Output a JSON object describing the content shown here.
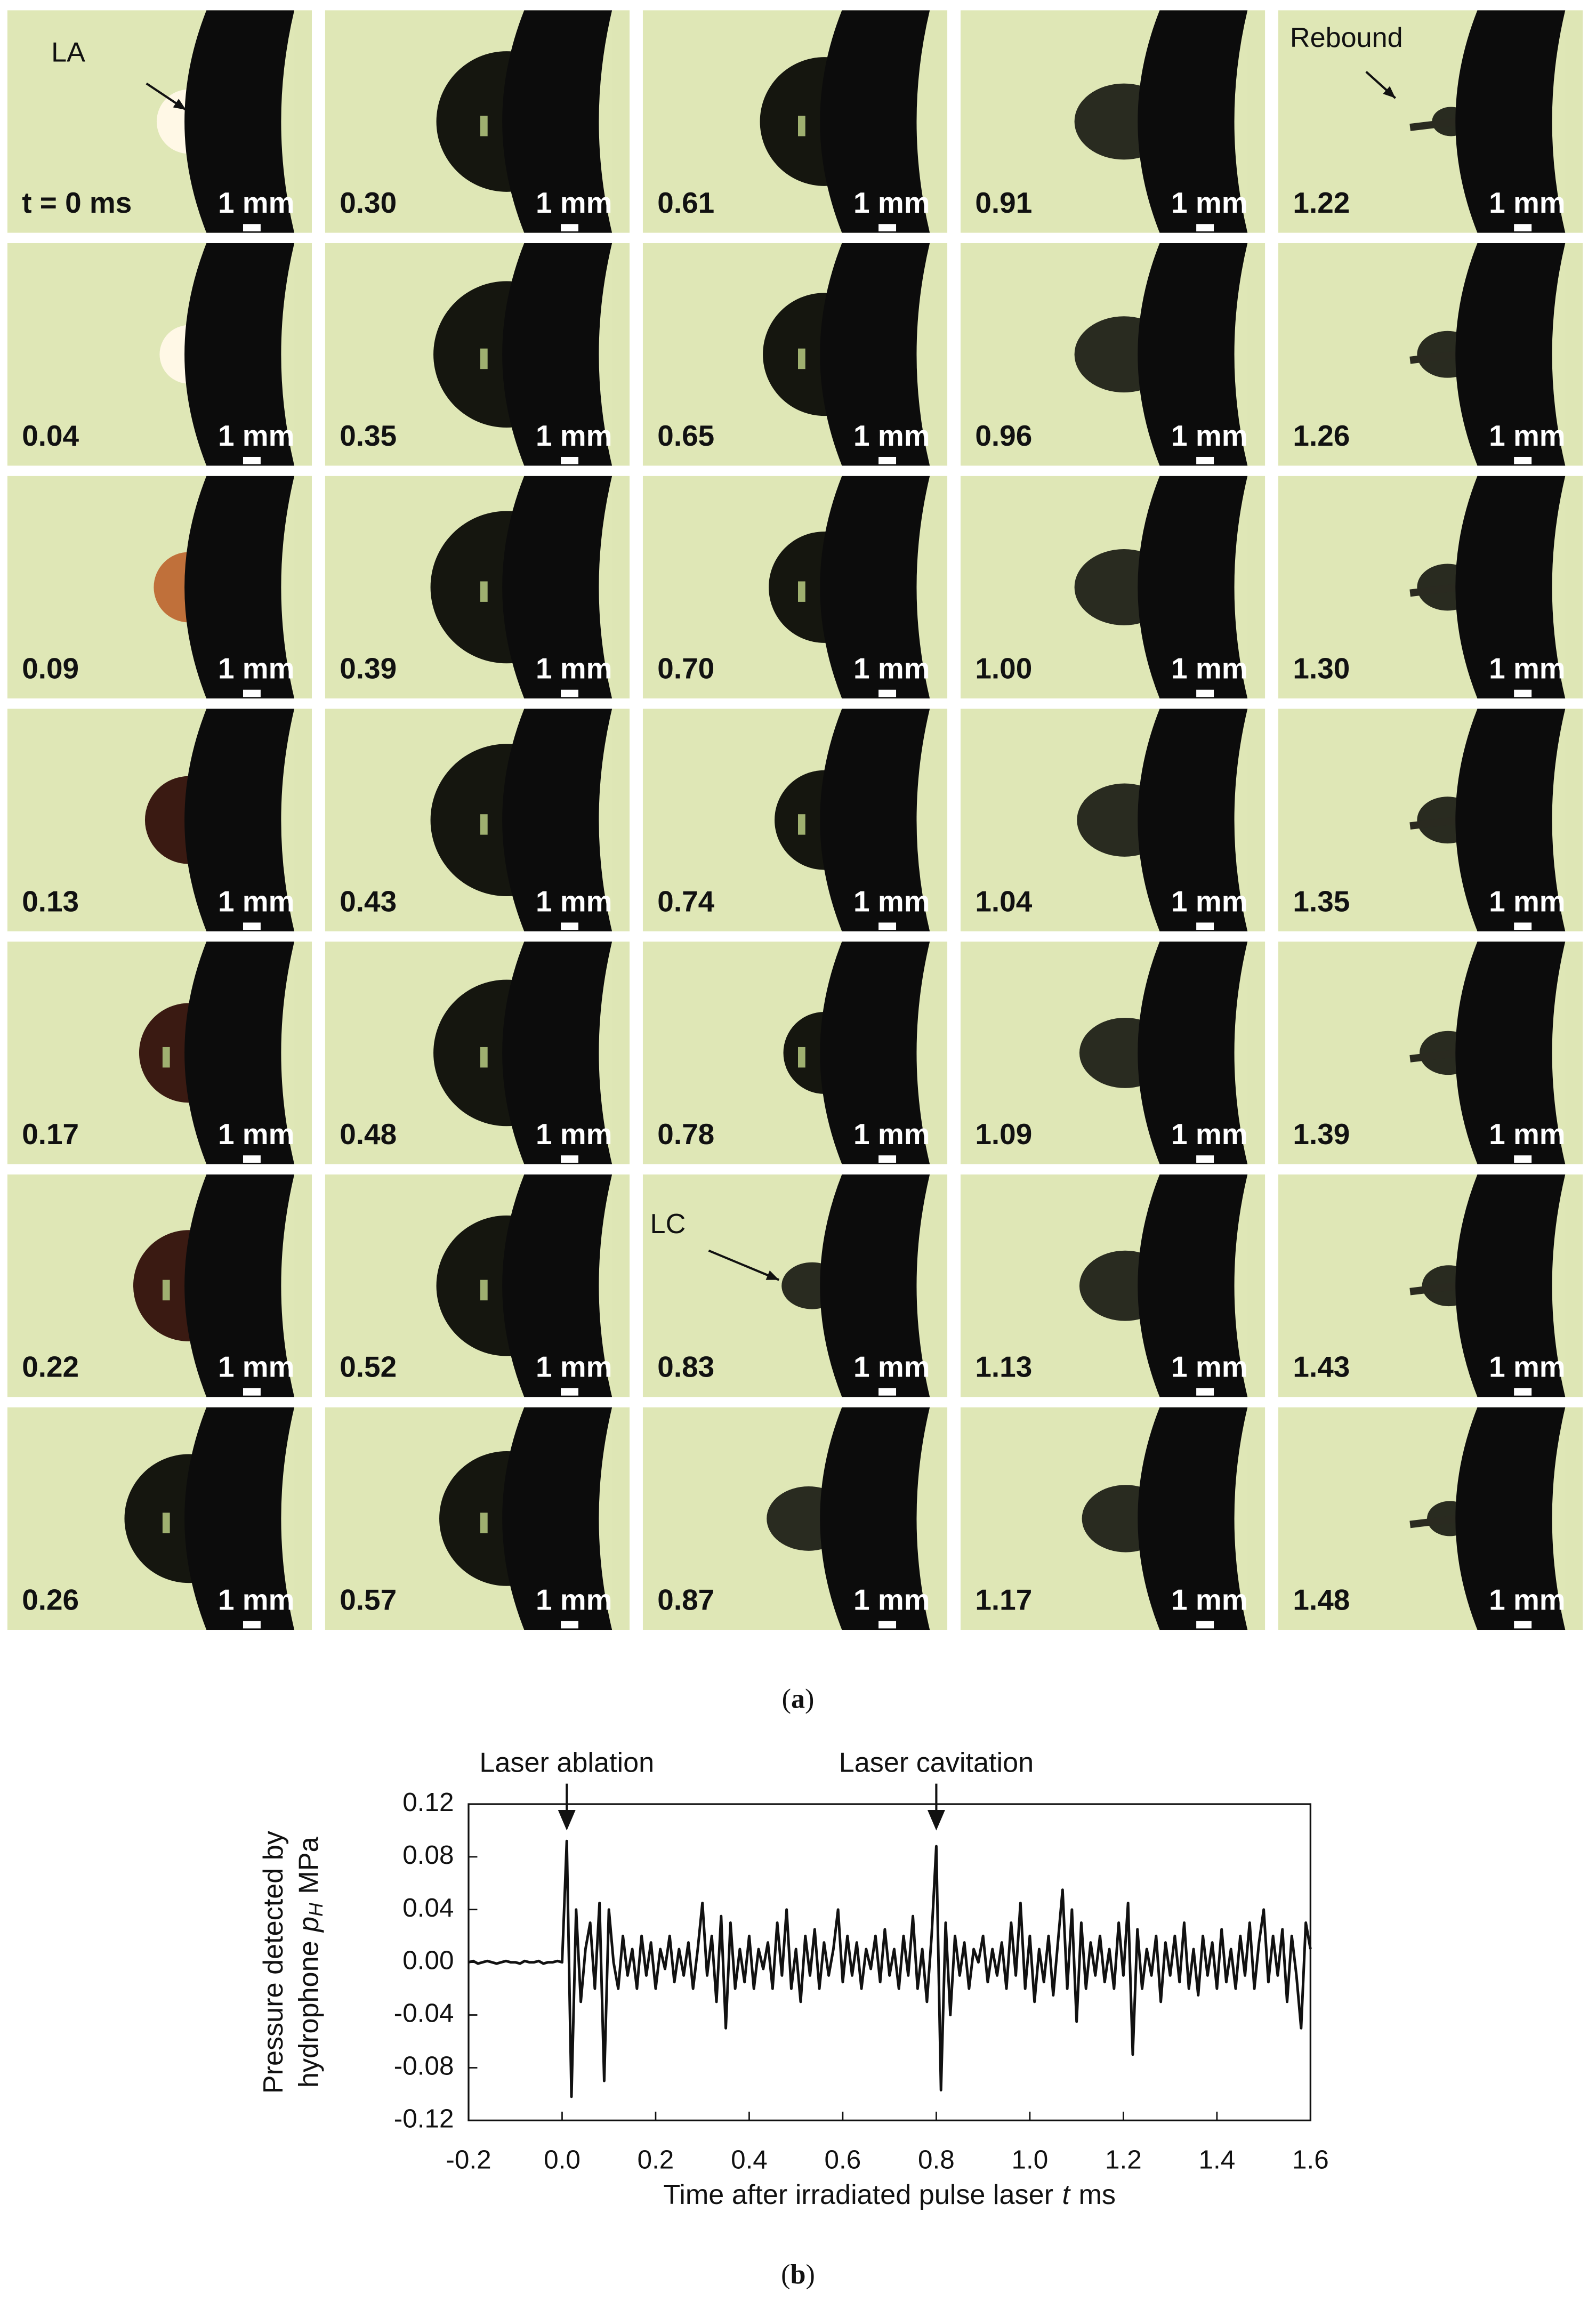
{
  "figure": {
    "frame_labels": [
      "t = 0 ms",
      "0.04",
      "0.09",
      "0.13",
      "0.17",
      "0.22",
      "0.26",
      "0.30",
      "0.35",
      "0.39",
      "0.43",
      "0.48",
      "0.52",
      "0.57",
      "0.61",
      "0.65",
      "0.70",
      "0.74",
      "0.78",
      "0.83",
      "0.87",
      "0.91",
      "0.96",
      "1.00",
      "1.04",
      "1.09",
      "1.13",
      "1.17",
      "1.22",
      "1.26",
      "1.30",
      "1.35",
      "1.39",
      "1.43",
      "1.48"
    ],
    "scale_label": "1 mm",
    "annotations": [
      "LA",
      "Rebound",
      "LC"
    ],
    "caption_a": [
      "(",
      "a",
      ")"
    ],
    "caption_b": [
      "(",
      "b",
      ")"
    ]
  },
  "chart_data": {
    "type": "line",
    "xlabel": [
      "Time after irradiated pulse laser",
      "t",
      "ms"
    ],
    "ylabel": [
      "Pressure detected by",
      "hydrophone",
      "p",
      "H",
      "MPa"
    ],
    "annotations": [
      {
        "text": "Laser ablation",
        "x": 0.01
      },
      {
        "text": "Laser cavitation",
        "x": 0.8
      }
    ],
    "xlim": [
      -0.2,
      1.6
    ],
    "xticks": [
      -0.2,
      {
        "value": 0,
        "label": "0.0"
      },
      0.2,
      0.4,
      0.6,
      0.8,
      {
        "value": 1,
        "label": "1.0"
      },
      1.2,
      1.4,
      1.6
    ],
    "ylim": [
      -0.12,
      0.12
    ],
    "yticks": [
      0.12,
      0.08,
      0.04,
      {
        "value": 0,
        "label": "0.00"
      },
      -0.04,
      -0.08,
      -0.12
    ],
    "grid": false,
    "x": [
      -0.2,
      -0.19,
      -0.18,
      -0.17,
      -0.16,
      -0.15,
      -0.14,
      -0.13,
      -0.12,
      -0.11,
      -0.1,
      -0.09,
      -0.08,
      -0.07,
      -0.06,
      -0.05,
      -0.04,
      -0.03,
      -0.02,
      -0.01,
      0,
      0.01,
      0.02,
      0.03,
      0.04,
      0.05,
      0.06,
      0.07,
      0.08,
      0.09,
      0.1,
      0.11,
      0.12,
      0.13,
      0.14,
      0.15,
      0.16,
      0.17,
      0.18,
      0.19,
      0.2,
      0.21,
      0.22,
      0.23,
      0.24,
      0.25,
      0.26,
      0.27,
      0.28,
      0.29,
      0.3,
      0.31,
      0.32,
      0.33,
      0.34,
      0.35,
      0.36,
      0.37,
      0.38,
      0.39,
      0.4,
      0.41,
      0.42,
      0.43,
      0.44,
      0.45,
      0.46,
      0.47,
      0.48,
      0.49,
      0.5,
      0.51,
      0.52,
      0.53,
      0.54,
      0.55,
      0.56,
      0.57,
      0.58,
      0.59,
      0.6,
      0.61,
      0.62,
      0.63,
      0.64,
      0.65,
      0.66,
      0.67,
      0.68,
      0.69,
      0.7,
      0.71,
      0.72,
      0.73,
      0.74,
      0.75,
      0.76,
      0.77,
      0.78,
      0.79,
      0.8,
      0.81,
      0.82,
      0.83,
      0.84,
      0.85,
      0.86,
      0.87,
      0.88,
      0.89,
      0.9,
      0.91,
      0.92,
      0.93,
      0.94,
      0.95,
      0.96,
      0.97,
      0.98,
      0.99,
      1,
      1.01,
      1.02,
      1.03,
      1.04,
      1.05,
      1.06,
      1.07,
      1.08,
      1.09,
      1.1,
      1.11,
      1.12,
      1.13,
      1.14,
      1.15,
      1.16,
      1.17,
      1.18,
      1.19,
      1.2,
      1.21,
      1.22,
      1.23,
      1.24,
      1.25,
      1.26,
      1.27,
      1.28,
      1.29,
      1.3,
      1.31,
      1.32,
      1.33,
      1.34,
      1.35,
      1.36,
      1.37,
      1.38,
      1.39,
      1.4,
      1.41,
      1.42,
      1.43,
      1.44,
      1.45,
      1.46,
      1.47,
      1.48,
      1.49,
      1.5,
      1.51,
      1.52,
      1.53,
      1.54,
      1.55,
      1.56,
      1.57,
      1.58,
      1.59,
      1.6
    ],
    "series": [
      {
        "name": "p_H",
        "color": "#111111",
        "values": [
          0,
          0.001,
          -0.001,
          0,
          0.001,
          0,
          -0.001,
          0,
          0.001,
          0,
          0,
          -0.001,
          0.001,
          0,
          0,
          0.001,
          -0.001,
          0,
          0,
          0.001,
          0,
          0.092,
          -0.102,
          0.04,
          -0.03,
          0.01,
          0.03,
          -0.02,
          0.045,
          -0.09,
          0.04,
          0,
          -0.02,
          0.02,
          -0.01,
          0.01,
          -0.02,
          0.02,
          -0.01,
          0.015,
          -0.02,
          0.01,
          -0.005,
          0.02,
          -0.015,
          0.01,
          -0.01,
          0.015,
          -0.02,
          0.01,
          0.045,
          -0.01,
          0.02,
          -0.03,
          0.035,
          -0.05,
          0.03,
          -0.02,
          0.01,
          -0.015,
          0.02,
          -0.02,
          0.01,
          -0.005,
          0.015,
          -0.02,
          0.03,
          -0.01,
          0.04,
          -0.02,
          0.01,
          -0.03,
          0.02,
          -0.01,
          0.025,
          -0.02,
          0.015,
          -0.01,
          0.01,
          0.04,
          -0.015,
          0.02,
          -0.01,
          0.015,
          -0.02,
          0.01,
          -0.005,
          0.02,
          -0.015,
          0.025,
          -0.01,
          0.01,
          -0.02,
          0.02,
          -0.01,
          0.035,
          -0.02,
          0.01,
          -0.03,
          0.02,
          0.088,
          -0.097,
          0.03,
          -0.04,
          0.02,
          -0.01,
          0.015,
          -0.02,
          0.01,
          0,
          0.02,
          -0.015,
          0.01,
          -0.01,
          0.015,
          -0.02,
          0.03,
          -0.01,
          0.045,
          -0.02,
          0.02,
          -0.03,
          0.01,
          -0.015,
          0.02,
          -0.025,
          0.015,
          0.055,
          -0.02,
          0.04,
          -0.045,
          0.03,
          -0.02,
          0.015,
          -0.01,
          0.02,
          -0.015,
          0.01,
          -0.02,
          0.03,
          -0.01,
          0.045,
          -0.07,
          0.025,
          -0.02,
          0.01,
          -0.01,
          0.02,
          -0.03,
          0.015,
          -0.01,
          0.02,
          -0.015,
          0.03,
          -0.02,
          0.01,
          -0.025,
          0.02,
          -0.01,
          0.015,
          -0.02,
          0.025,
          -0.015,
          0.01,
          -0.02,
          0.02,
          -0.01,
          0.03,
          -0.02,
          0.015,
          0.04,
          -0.015,
          0.02,
          -0.01,
          0.025,
          -0.03,
          0.02,
          -0.01,
          -0.05,
          0.03,
          0.01
        ]
      }
    ]
  }
}
